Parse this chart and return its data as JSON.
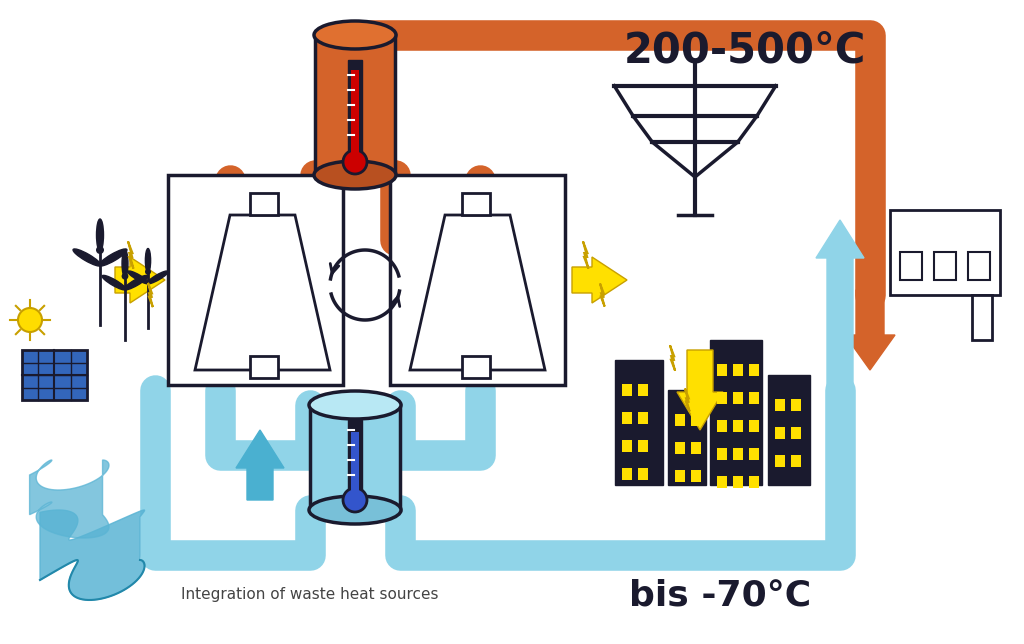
{
  "bg_color": "#ffffff",
  "orange": "#d4632a",
  "blue_light": "#90d4e8",
  "blue_dark": "#4ab0d0",
  "dark": "#1a1a2e",
  "yellow": "#ffe000",
  "yellow_ec": "#c8a000",
  "text_hot": "200-500°C",
  "text_cold": "bis -70°C",
  "text_waste": "Integration of waste heat sources"
}
